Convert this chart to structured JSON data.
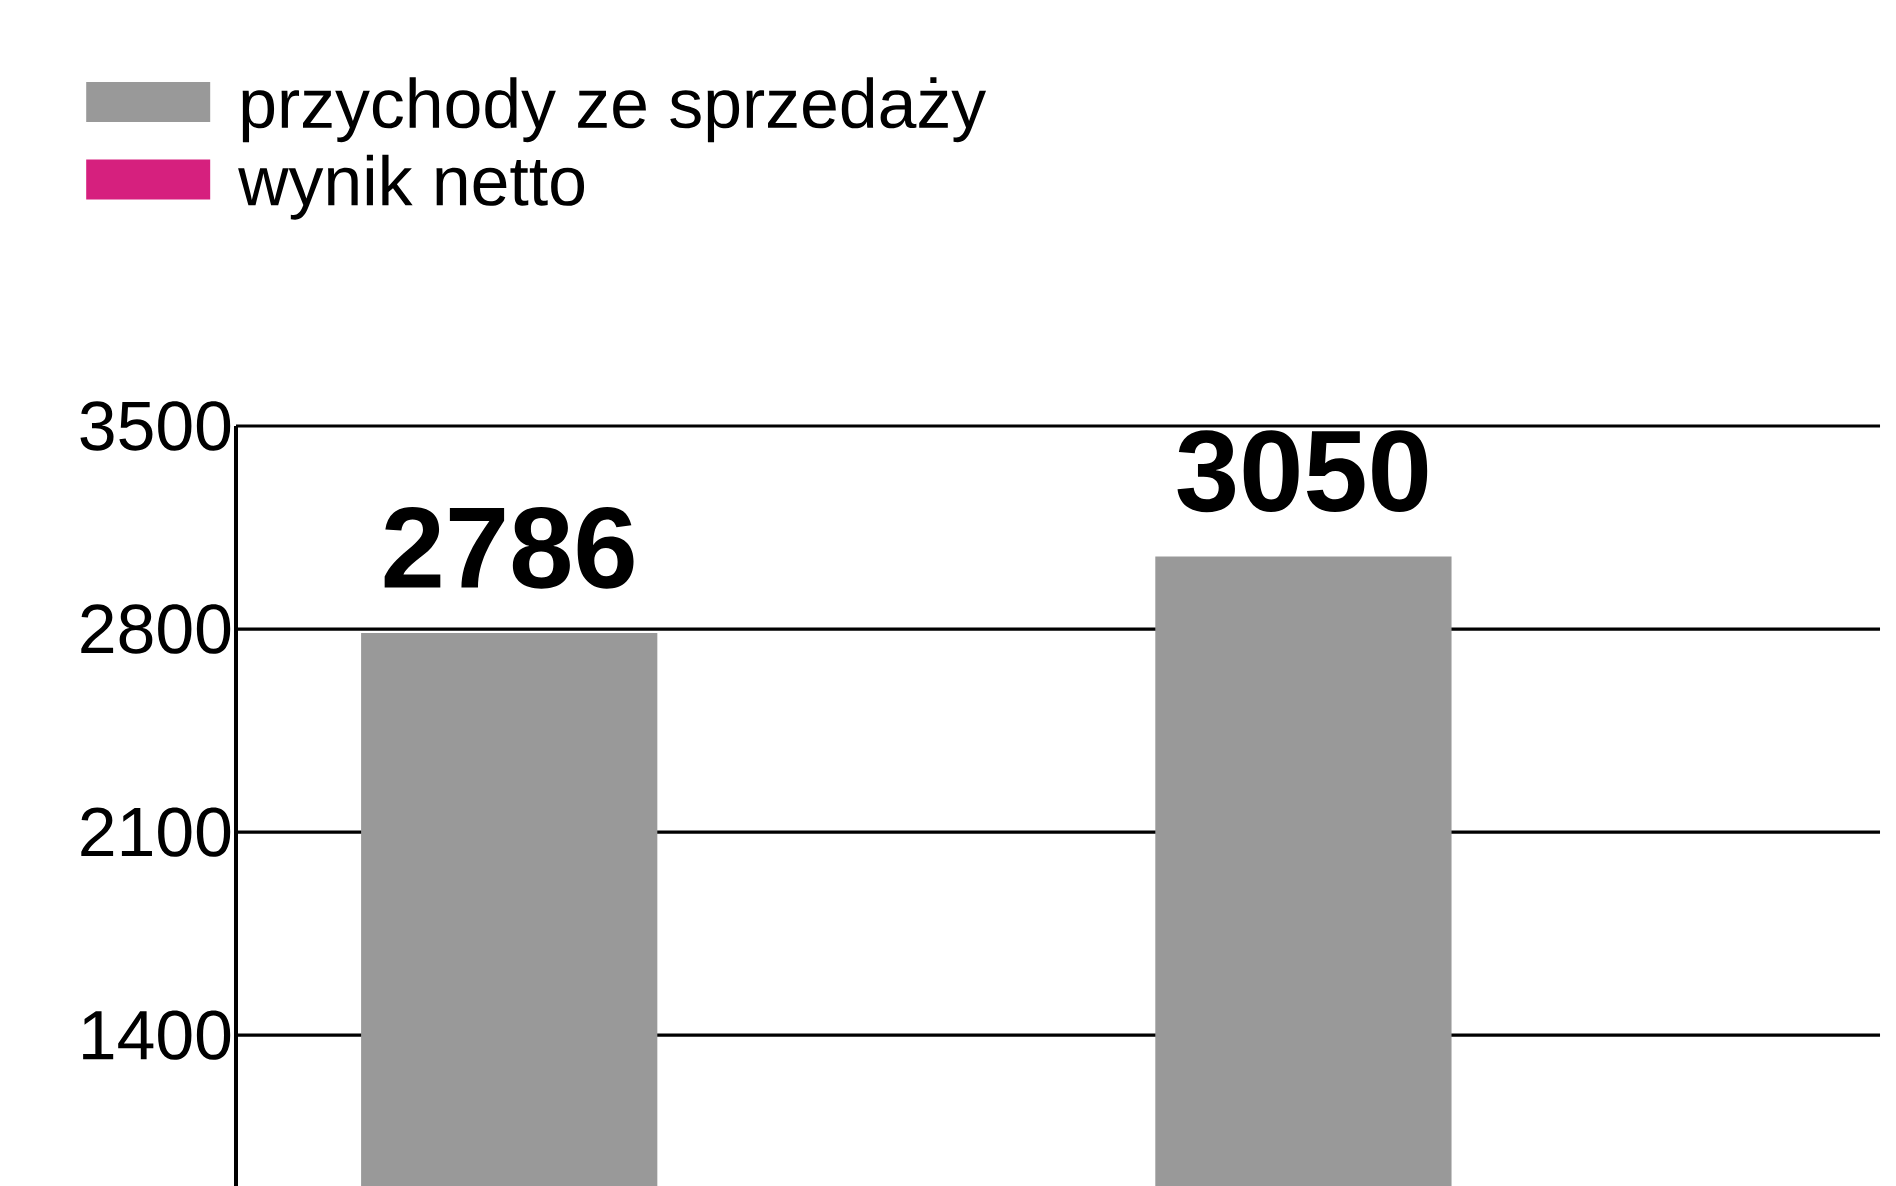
{
  "chart_data": {
    "type": "bar",
    "categories": [
      null,
      null
    ],
    "series": [
      {
        "name": "przychody ze sprzedaży",
        "color": "#999999",
        "values": [
          2786,
          3050
        ],
        "value_labels": [
          "2786",
          "3050"
        ]
      },
      {
        "name": "wynik netto",
        "color": "#d6207e",
        "values": [
          null,
          null
        ]
      }
    ],
    "ylim": [
      880,
      3500
    ],
    "yticks": [
      1400,
      2100,
      2800,
      3500
    ],
    "grid": "y",
    "legend": "top left"
  }
}
